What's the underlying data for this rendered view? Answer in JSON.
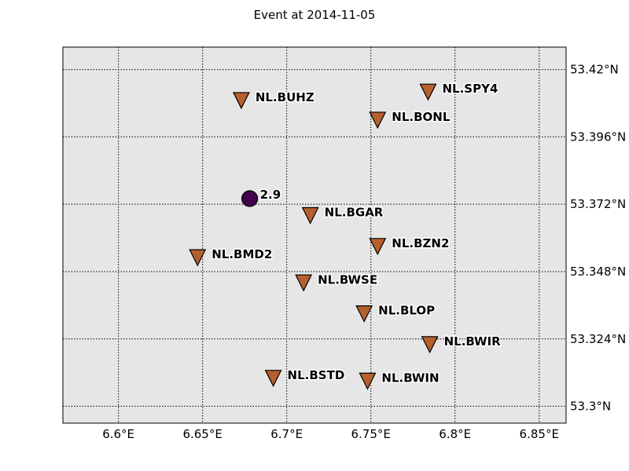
{
  "title": "Event at 2014-11-05",
  "colors": {
    "ocean": "#e6e6e6",
    "station": "#b5602f",
    "event": "#44004f",
    "outline": "#000000"
  },
  "chart_data": {
    "type": "scatter",
    "lon_range": [
      6.567,
      6.866
    ],
    "lat_range": [
      53.294,
      53.428
    ],
    "lon_ticks": [
      {
        "value": 6.6,
        "label": "6.6°E"
      },
      {
        "value": 6.65,
        "label": "6.65°E"
      },
      {
        "value": 6.7,
        "label": "6.7°E"
      },
      {
        "value": 6.75,
        "label": "6.75°E"
      },
      {
        "value": 6.8,
        "label": "6.8°E"
      },
      {
        "value": 6.85,
        "label": "6.85°E"
      }
    ],
    "lat_ticks": [
      {
        "value": 53.3,
        "label": "53.3°N"
      },
      {
        "value": 53.324,
        "label": "53.324°N"
      },
      {
        "value": 53.348,
        "label": "53.348°N"
      },
      {
        "value": 53.372,
        "label": "53.372°N"
      },
      {
        "value": 53.396,
        "label": "53.396°N"
      },
      {
        "value": 53.42,
        "label": "53.42°N"
      }
    ],
    "grid": true,
    "event": {
      "lon": 6.678,
      "lat": 53.374,
      "label": "2.9"
    },
    "stations": [
      {
        "name": "NL.BUHZ",
        "lon": 6.673,
        "lat": 53.409
      },
      {
        "name": "NL.SPY4",
        "lon": 6.784,
        "lat": 53.412
      },
      {
        "name": "NL.BONL",
        "lon": 6.754,
        "lat": 53.402
      },
      {
        "name": "NL.BGAR",
        "lon": 6.714,
        "lat": 53.368
      },
      {
        "name": "NL.BZN2",
        "lon": 6.754,
        "lat": 53.357
      },
      {
        "name": "NL.BMD2",
        "lon": 6.647,
        "lat": 53.353
      },
      {
        "name": "NL.BWSE",
        "lon": 6.71,
        "lat": 53.344
      },
      {
        "name": "NL.BLOP",
        "lon": 6.746,
        "lat": 53.333
      },
      {
        "name": "NL.BWIR",
        "lon": 6.785,
        "lat": 53.322
      },
      {
        "name": "NL.BSTD",
        "lon": 6.692,
        "lat": 53.31
      },
      {
        "name": "NL.BWIN",
        "lon": 6.748,
        "lat": 53.309
      }
    ]
  }
}
